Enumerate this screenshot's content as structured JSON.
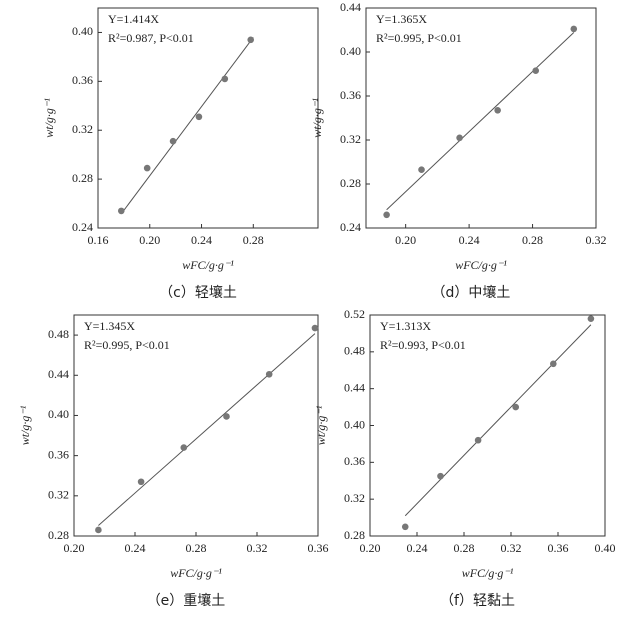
{
  "chart_data": [
    {
      "type": "scatter",
      "caption": "（c）轻壤土",
      "annotations": [
        "Y=1.414X",
        "R²=0.987, P<0.01"
      ],
      "x_label": "wFC/g·g⁻¹",
      "y_label": "wt/g·g⁻¹",
      "xlim": [
        0.16,
        0.33
      ],
      "xticks": [
        {
          "value": 0.16,
          "label": "0.16"
        },
        {
          "value": 0.2,
          "label": "0.20"
        },
        {
          "value": 0.24,
          "label": "0.24"
        },
        {
          "value": 0.28,
          "label": "0.28"
        }
      ],
      "ylim": [
        0.24,
        0.42
      ],
      "yticks": [
        {
          "value": 0.24,
          "label": "0.24"
        },
        0.28,
        0.32,
        0.36,
        {
          "value": 0.4,
          "label": "0.40"
        }
      ],
      "color": "#777777",
      "x": [
        0.178,
        0.198,
        0.218,
        0.238,
        0.258,
        0.278
      ],
      "values": [
        0.254,
        0.289,
        0.311,
        0.331,
        0.362,
        0.394
      ],
      "fit": {
        "x": [
          0.18,
          0.28
        ],
        "values": [
          0.2545,
          0.3959
        ]
      }
    },
    {
      "type": "scatter",
      "caption": "（d）中壤土",
      "annotations": [
        "Y=1.365X",
        "R²=0.995, P<0.01"
      ],
      "x_label": "wFC/g·g⁻¹",
      "y_label": "wt/g·g⁻¹",
      "xlim": [
        0.175,
        0.32
      ],
      "xticks": [
        {
          "value": 0.2,
          "label": "0.20"
        },
        0.24,
        0.28,
        0.32
      ],
      "ylim": [
        0.24,
        0.44
      ],
      "yticks": [
        0.24,
        0.28,
        0.32,
        0.36,
        {
          "value": 0.4,
          "label": "0.40"
        },
        0.44
      ],
      "color": "#777777",
      "x": [
        0.188,
        0.21,
        0.234,
        0.258,
        0.282,
        0.306
      ],
      "values": [
        0.252,
        0.293,
        0.322,
        0.347,
        0.383,
        0.421
      ],
      "fit": {
        "x": [
          0.188,
          0.306
        ],
        "values": [
          0.2566,
          0.4177
        ]
      }
    },
    {
      "type": "scatter",
      "caption": "（e）重壤土",
      "annotations": [
        "Y=1.345X",
        "R²=0.995, P<0.01"
      ],
      "x_label": "wFC/g·g⁻¹",
      "y_label": "wt/g·g⁻¹",
      "xlim": [
        0.2,
        0.36
      ],
      "xticks": [
        {
          "value": 0.2,
          "label": "0.20"
        },
        0.24,
        0.28,
        0.32,
        0.36
      ],
      "ylim": [
        0.28,
        0.5
      ],
      "yticks": [
        0.28,
        0.32,
        0.36,
        {
          "value": 0.4,
          "label": "0.40"
        },
        0.44,
        0.48
      ],
      "color": "#777777",
      "x": [
        0.216,
        0.244,
        0.272,
        0.3,
        0.328,
        0.358
      ],
      "values": [
        0.286,
        0.334,
        0.368,
        0.399,
        0.441,
        0.487
      ],
      "fit": {
        "x": [
          0.216,
          0.358
        ],
        "values": [
          0.2905,
          0.4815
        ]
      }
    },
    {
      "type": "scatter",
      "caption": "（f）轻黏土",
      "annotations": [
        "Y=1.313X",
        "R²=0.993, P<0.01"
      ],
      "x_label": "wFC/g·g⁻¹",
      "y_label": "wt/g·g⁻¹",
      "xlim": [
        0.2,
        0.4
      ],
      "xticks": [
        {
          "value": 0.2,
          "label": "0.20"
        },
        0.24,
        0.28,
        0.32,
        0.36,
        {
          "value": 0.4,
          "label": "0.40"
        }
      ],
      "ylim": [
        0.28,
        0.52
      ],
      "yticks": [
        0.28,
        0.32,
        0.36,
        {
          "value": 0.4,
          "label": "0.40"
        },
        0.44,
        0.48,
        0.52
      ],
      "color": "#777777",
      "x": [
        0.23,
        0.26,
        0.292,
        0.324,
        0.356,
        0.388
      ],
      "values": [
        0.29,
        0.345,
        0.384,
        0.42,
        0.467,
        0.516
      ],
      "fit": {
        "x": [
          0.23,
          0.388
        ],
        "values": [
          0.302,
          0.5094
        ]
      }
    }
  ]
}
